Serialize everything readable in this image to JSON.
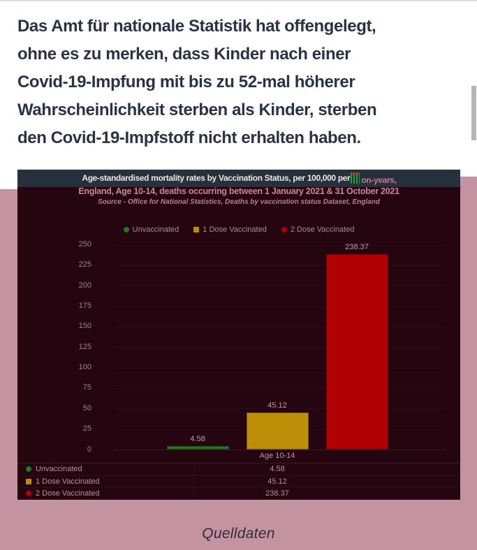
{
  "page": {
    "background": "#ffffff",
    "overlay_pink": "#c493a2",
    "headline": {
      "text_color": "#2a3346",
      "lines": [
        "Das Amt für nationale Statistik hat offengelegt,",
        "ohne es zu merken, dass Kinder nach einer",
        "Covid-19-Impfung mit bis zu 52-mal höherer",
        "Wahrscheinlichkeit sterben als Kinder, sterben",
        "den Covid-19-Impfstoff nicht erhalten haben."
      ]
    },
    "footer_link_label": "Quelldaten"
  },
  "chart": {
    "background": "#250510",
    "header_bar_color": "#27313e",
    "header": {
      "title_part1": "Age-standardised mortality rates by Vaccination Status, per 100,000 per",
      "title_part2": "on-years,"
    },
    "subtitle": "England, Age 10-14, deaths occurring between 1 January 2021 & 31 October 2021",
    "source": "Source - Office for National Statistics, Deaths by vaccination status Dataset, England"
  },
  "chart_data": {
    "type": "bar",
    "title": "Age-standardised mortality rates by Vaccination Status, per 100,000 person-years, England, Age 10-14, deaths occurring between 1 January 2021 & 31 October 2021",
    "source": "Source - Office for National Statistics, Deaths by vaccination status Dataset, England",
    "categories": [
      "Age 10-14"
    ],
    "series": [
      {
        "name": "Unvaccinated",
        "marker": "circle",
        "color": "#1e7a1e",
        "values": [
          4.58
        ]
      },
      {
        "name": "1 Dose Vaccinated",
        "marker": "square",
        "color": "#bd8e08",
        "values": [
          45.12
        ]
      },
      {
        "name": "2 Dose Vaccinated",
        "marker": "circle",
        "color": "#b00003",
        "values": [
          238.37
        ]
      }
    ],
    "ylim": [
      0,
      250
    ],
    "yticks": [
      0,
      25,
      50,
      75,
      100,
      125,
      150,
      175,
      200,
      225,
      250
    ],
    "legend_position": "top",
    "grid": false,
    "data_table": {
      "header": "Age 10-14",
      "rows": [
        {
          "name": "Unvaccinated",
          "value": "4.58"
        },
        {
          "name": "1 Dose Vaccinated",
          "value": "45.12"
        },
        {
          "name": "2 Dose Vaccinated",
          "value": "238.37"
        }
      ]
    }
  }
}
